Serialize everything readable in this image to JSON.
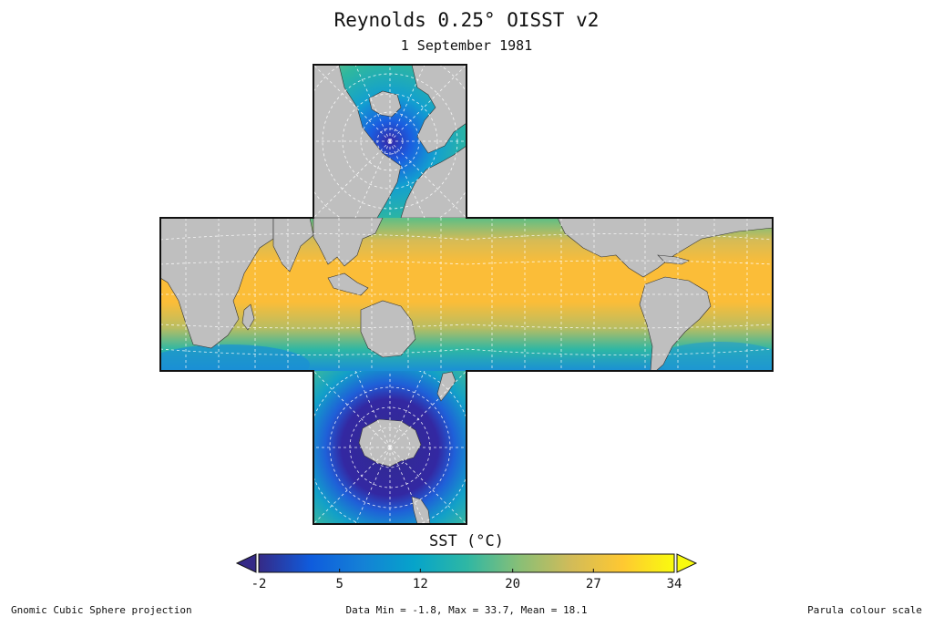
{
  "title": "Reynolds 0.25° OISST v2",
  "subtitle": "1 September 1981",
  "colorbar": {
    "label": "SST (°C)",
    "ticks": [
      {
        "label": "-2",
        "value": -2
      },
      {
        "label": "5",
        "value": 5
      },
      {
        "label": "12",
        "value": 12
      },
      {
        "label": "20",
        "value": 20
      },
      {
        "label": "27",
        "value": 27
      },
      {
        "label": "34",
        "value": 34
      }
    ],
    "min": -2,
    "max": 34,
    "extend": "both",
    "colors": [
      "#352a87",
      "#0f5cdd",
      "#1481d6",
      "#06a4ca",
      "#2eb7a4",
      "#87bf77",
      "#d1bb59",
      "#fec832",
      "#f9fb0e"
    ]
  },
  "footer": {
    "projection": "Gnomic Cubic Sphere projection",
    "stats": "Data Min = -1.8, Max = 33.7, Mean = 18.1",
    "scale": "Parula colour scale"
  },
  "map_colors": {
    "land": "#bfbfbf",
    "warm": "#fbbd38",
    "mid": "#23b0a0",
    "cool": "#1f8fd8",
    "cold": "#3a2fa0",
    "frame": "#111111",
    "grid": "#ffffff"
  }
}
